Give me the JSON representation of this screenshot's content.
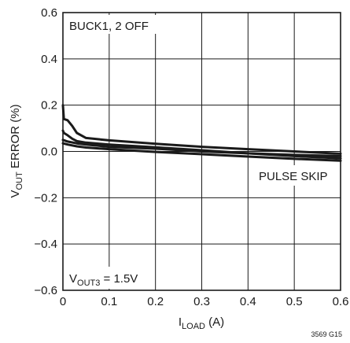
{
  "chart_data": {
    "type": "line",
    "title": "",
    "xlabel": {
      "main": "I",
      "sub": "LOAD",
      "unit": " (A)"
    },
    "ylabel": {
      "main": "V",
      "sub": "OUT",
      "rest": " ERROR (%)"
    },
    "xlim": [
      0,
      0.6
    ],
    "ylim": [
      -0.6,
      0.6
    ],
    "xticks": [
      "0",
      "0.1",
      "0.2",
      "0.3",
      "0.4",
      "0.5",
      "0.6"
    ],
    "yticks": [
      "0.6",
      "0.4",
      "0.2",
      "0.0",
      "−0.2",
      "−0.4",
      "−0.6"
    ],
    "grid": true,
    "annotations": {
      "mode": "BUCK1, 2 OFF",
      "pulse": "PULSE SKIP",
      "vout_main": "V",
      "vout_sub": "OUT3",
      "vout_rest": " = 1.5V"
    },
    "series": [
      {
        "x": [
          0,
          0.002,
          0.01,
          0.02,
          0.03,
          0.05,
          0.1,
          0.2,
          0.3,
          0.4,
          0.5,
          0.6
        ],
        "y": [
          0.2,
          0.14,
          0.135,
          0.11,
          0.08,
          0.058,
          0.048,
          0.033,
          0.02,
          0.01,
          0.0,
          -0.01
        ]
      },
      {
        "x": [
          0,
          0.002,
          0.01,
          0.02,
          0.03,
          0.05,
          0.1,
          0.2,
          0.3,
          0.4,
          0.5,
          0.6
        ],
        "y": [
          0.09,
          0.08,
          0.07,
          0.055,
          0.045,
          0.038,
          0.03,
          0.018,
          0.005,
          -0.008,
          -0.02,
          -0.03
        ]
      },
      {
        "x": [
          0,
          0.01,
          0.03,
          0.05,
          0.1,
          0.2,
          0.3,
          0.4,
          0.5,
          0.6
        ],
        "y": [
          0.05,
          0.043,
          0.035,
          0.03,
          0.02,
          0.012,
          0.0,
          -0.008,
          -0.015,
          -0.02
        ]
      },
      {
        "x": [
          0,
          0.01,
          0.03,
          0.05,
          0.1,
          0.2,
          0.3,
          0.4,
          0.5,
          0.6
        ],
        "y": [
          0.035,
          0.03,
          0.022,
          0.017,
          0.01,
          -0.002,
          -0.012,
          -0.022,
          -0.032,
          -0.04
        ]
      }
    ]
  },
  "figure_id": "3569 G15"
}
